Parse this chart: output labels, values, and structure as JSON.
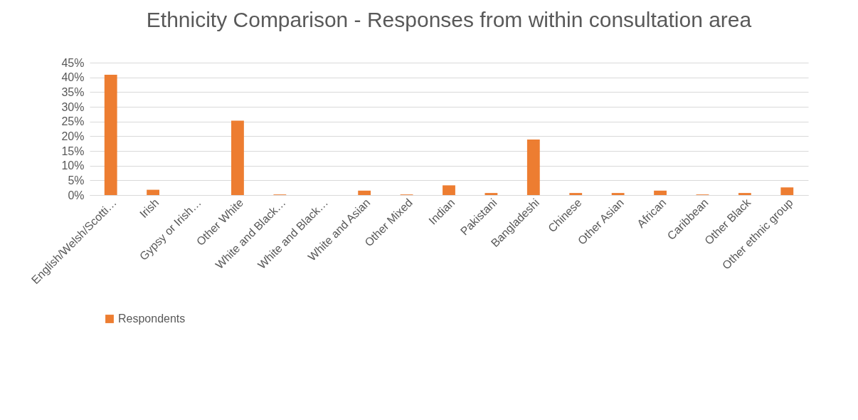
{
  "chart_data": {
    "type": "bar",
    "title": "Ethnicity Comparison - Responses from within consultation area",
    "categories": [
      "English/Welsh/Scotti…",
      "Irish",
      "Gypsy or Irish…",
      "Other White",
      "White and Black…",
      "White and Black…",
      "White and Asian",
      "Other Mixed",
      "Indian",
      "Pakistani",
      "Bangladeshi",
      "Chinese",
      "Other Asian",
      "African",
      "Caribbean",
      "Other Black",
      "Other ethnic group"
    ],
    "series": [
      {
        "name": "Respondents",
        "color": "#ed7d31",
        "values": [
          40.9,
          1.8,
          0,
          25.3,
          0.2,
          0,
          1.5,
          0.2,
          3.3,
          0.7,
          18.9,
          0.7,
          0.7,
          1.5,
          0.2,
          0.7,
          2.6
        ]
      }
    ],
    "ylim": [
      0,
      45
    ],
    "yticks": [
      {
        "value": 0,
        "label": "0%"
      },
      {
        "value": 5,
        "label": "5%"
      },
      {
        "value": 10,
        "label": "10%"
      },
      {
        "value": 15,
        "label": "15%"
      },
      {
        "value": 20,
        "label": "20%"
      },
      {
        "value": 25,
        "label": "25%"
      },
      {
        "value": 30,
        "label": "30%"
      },
      {
        "value": 35,
        "label": "35%"
      },
      {
        "value": 40,
        "label": "40%"
      },
      {
        "value": 45,
        "label": "45%"
      }
    ],
    "grid": "y",
    "legend": "bottom"
  }
}
